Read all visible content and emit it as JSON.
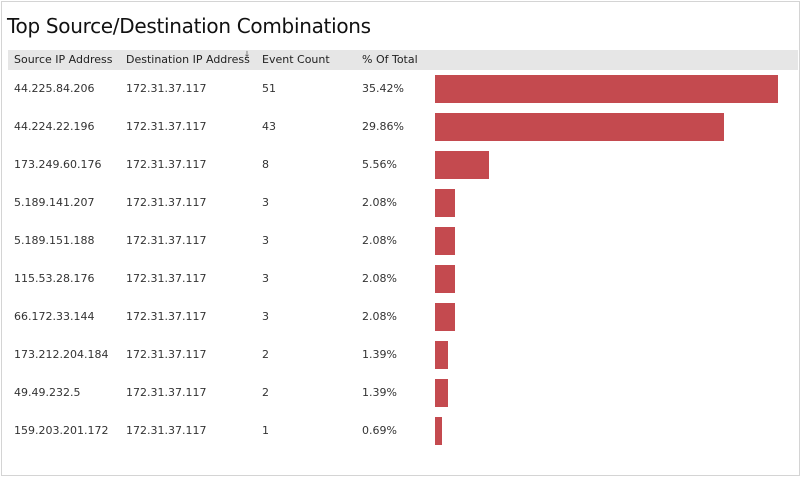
{
  "title": "Top Source/Destination Combinations",
  "columns": {
    "source": "Source IP Address",
    "destination": "Destination IP Address",
    "count": "Event Count",
    "percent": "% Of Total"
  },
  "sort_icon": "sort-descending-icon",
  "colors": {
    "bar": "#c44a4f",
    "header_bg": "#e6e6e6"
  },
  "rows": [
    {
      "source": "44.225.84.206",
      "destination": "172.31.37.117",
      "count": "51",
      "percent": "35.42%",
      "pct": 35.42
    },
    {
      "source": "44.224.22.196",
      "destination": "172.31.37.117",
      "count": "43",
      "percent": "29.86%",
      "pct": 29.86
    },
    {
      "source": "173.249.60.176",
      "destination": "172.31.37.117",
      "count": "8",
      "percent": "5.56%",
      "pct": 5.56
    },
    {
      "source": "5.189.141.207",
      "destination": "172.31.37.117",
      "count": "3",
      "percent": "2.08%",
      "pct": 2.08
    },
    {
      "source": "5.189.151.188",
      "destination": "172.31.37.117",
      "count": "3",
      "percent": "2.08%",
      "pct": 2.08
    },
    {
      "source": "115.53.28.176",
      "destination": "172.31.37.117",
      "count": "3",
      "percent": "2.08%",
      "pct": 2.08
    },
    {
      "source": "66.172.33.144",
      "destination": "172.31.37.117",
      "count": "3",
      "percent": "2.08%",
      "pct": 2.08
    },
    {
      "source": "173.212.204.184",
      "destination": "172.31.37.117",
      "count": "2",
      "percent": "1.39%",
      "pct": 1.39
    },
    {
      "source": "49.49.232.5",
      "destination": "172.31.37.117",
      "count": "2",
      "percent": "1.39%",
      "pct": 1.39
    },
    {
      "source": "159.203.201.172",
      "destination": "172.31.37.117",
      "count": "1",
      "percent": "0.69%",
      "pct": 0.69
    }
  ]
}
